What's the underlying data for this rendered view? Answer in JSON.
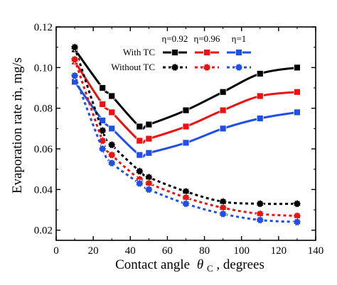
{
  "chart_data": {
    "type": "line",
    "xlabel": "Contact angle",
    "xlabel_symbol": "θ",
    "xlabel_subscript": "C",
    "xlabel_unit": ", degrees",
    "ylabel": "Evaporation rate ṁ, mg/s",
    "xlim": [
      0,
      140
    ],
    "ylim": [
      0.015,
      0.12
    ],
    "xticks": [
      0,
      20,
      40,
      60,
      80,
      100,
      120,
      140
    ],
    "yticks": [
      0.02,
      0.04,
      0.06,
      0.08,
      0.1,
      0.12
    ],
    "ytick_labels": [
      "0.02",
      "0.04",
      "0.06",
      "0.08",
      "0.10",
      "0.12"
    ],
    "grid": false,
    "legend": {
      "placement": "top-right",
      "column_headers": [
        "η=0.92",
        "η=0.96",
        "η=1"
      ],
      "row_labels": [
        "With TC",
        "Without TC"
      ]
    },
    "series": [
      {
        "legend_col": "η=0.92",
        "legend_row": "With TC",
        "color": "#000000",
        "style": "solid",
        "marker": "square",
        "x": [
          10,
          25,
          30,
          45,
          50,
          70,
          90,
          110,
          130
        ],
        "y": [
          0.109,
          0.09,
          0.086,
          0.071,
          0.072,
          0.079,
          0.088,
          0.097,
          0.1
        ]
      },
      {
        "legend_col": "η=0.96",
        "legend_row": "With TC",
        "color": "#ee1111",
        "style": "solid",
        "marker": "square",
        "x": [
          10,
          25,
          30,
          45,
          50,
          70,
          90,
          110,
          130
        ],
        "y": [
          0.103,
          0.082,
          0.078,
          0.064,
          0.065,
          0.071,
          0.079,
          0.086,
          0.088
        ]
      },
      {
        "legend_col": "η=1",
        "legend_row": "With TC",
        "color": "#1f4fe8",
        "style": "solid",
        "marker": "square",
        "x": [
          10,
          25,
          30,
          45,
          50,
          70,
          90,
          110,
          130
        ],
        "y": [
          0.093,
          0.074,
          0.07,
          0.057,
          0.058,
          0.063,
          0.07,
          0.075,
          0.078
        ]
      },
      {
        "legend_col": "η=0.92",
        "legend_row": "Without TC",
        "color": "#000000",
        "style": "dotted",
        "marker": "circle",
        "x": [
          10,
          25,
          30,
          45,
          50,
          70,
          90,
          110,
          130
        ],
        "y": [
          0.11,
          0.069,
          0.062,
          0.049,
          0.046,
          0.039,
          0.034,
          0.033,
          0.033
        ]
      },
      {
        "legend_col": "η=0.96",
        "legend_row": "Without TC",
        "color": "#ee1111",
        "style": "dotted",
        "marker": "circle",
        "x": [
          10,
          25,
          30,
          45,
          50,
          70,
          90,
          110,
          130
        ],
        "y": [
          0.104,
          0.064,
          0.057,
          0.045,
          0.043,
          0.036,
          0.031,
          0.028,
          0.027
        ]
      },
      {
        "legend_col": "η=1",
        "legend_row": "Without TC",
        "color": "#1f4fe8",
        "style": "dotted",
        "marker": "circle",
        "x": [
          10,
          25,
          30,
          45,
          50,
          70,
          90,
          110,
          130
        ],
        "y": [
          0.096,
          0.06,
          0.053,
          0.043,
          0.04,
          0.033,
          0.028,
          0.025,
          0.024
        ]
      }
    ]
  }
}
